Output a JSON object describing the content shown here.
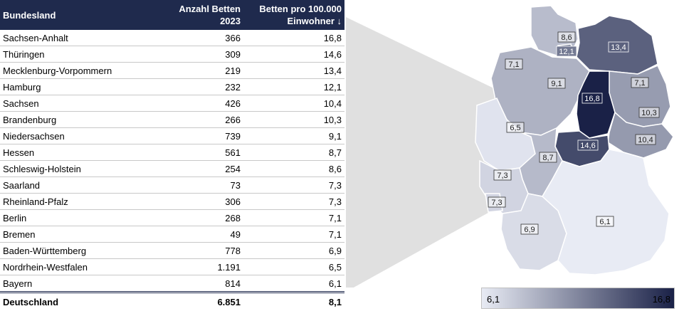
{
  "table": {
    "headers": [
      "Bundesland",
      "Anzahl Betten 2023",
      "Betten pro 100.000 Einwohner ↓"
    ],
    "header_lines": {
      "col2_line1": "Anzahl Betten",
      "col2_line2": "2023",
      "col3_line1": "Betten pro 100.000",
      "col3_line2": "Einwohner ↓"
    },
    "rows": [
      {
        "land": "Sachsen-Anhalt",
        "betten": "366",
        "rate": "16,8"
      },
      {
        "land": "Thüringen",
        "betten": "309",
        "rate": "14,6"
      },
      {
        "land": "Mecklenburg-Vorpommern",
        "betten": "219",
        "rate": "13,4"
      },
      {
        "land": "Hamburg",
        "betten": "232",
        "rate": "12,1"
      },
      {
        "land": "Sachsen",
        "betten": "426",
        "rate": "10,4"
      },
      {
        "land": "Brandenburg",
        "betten": "266",
        "rate": "10,3"
      },
      {
        "land": "Niedersachsen",
        "betten": "739",
        "rate": "9,1"
      },
      {
        "land": "Hessen",
        "betten": "561",
        "rate": "8,7"
      },
      {
        "land": "Schleswig-Holstein",
        "betten": "254",
        "rate": "8,6"
      },
      {
        "land": "Saarland",
        "betten": "73",
        "rate": "7,3"
      },
      {
        "land": "Rheinland-Pfalz",
        "betten": "306",
        "rate": "7,3"
      },
      {
        "land": "Berlin",
        "betten": "268",
        "rate": "7,1"
      },
      {
        "land": "Bremen",
        "betten": "49",
        "rate": "7,1"
      },
      {
        "land": "Baden-Württemberg",
        "betten": "778",
        "rate": "6,9"
      },
      {
        "land": "Nordrhein-Westfalen",
        "betten": "1.191",
        "rate": "6,5"
      },
      {
        "land": "Bayern",
        "betten": "814",
        "rate": "6,1"
      }
    ],
    "total": {
      "land": "Deutschland",
      "betten": "6.851",
      "rate": "8,1"
    }
  },
  "chart_data": {
    "type": "table",
    "columns": [
      "Bundesland",
      "Anzahl Betten 2023",
      "Betten pro 100.000 Einwohner"
    ],
    "categories": [
      "Sachsen-Anhalt",
      "Thüringen",
      "Mecklenburg-Vorpommern",
      "Hamburg",
      "Sachsen",
      "Brandenburg",
      "Niedersachsen",
      "Hessen",
      "Schleswig-Holstein",
      "Saarland",
      "Rheinland-Pfalz",
      "Berlin",
      "Bremen",
      "Baden-Württemberg",
      "Nordrhein-Westfalen",
      "Bayern"
    ],
    "series": [
      {
        "name": "Anzahl Betten 2023",
        "values": [
          366,
          309,
          219,
          232,
          426,
          266,
          739,
          561,
          254,
          73,
          306,
          268,
          49,
          778,
          1191,
          814
        ]
      },
      {
        "name": "Betten pro 100.000 Einwohner",
        "values": [
          16.8,
          14.6,
          13.4,
          12.1,
          10.4,
          10.3,
          9.1,
          8.7,
          8.6,
          7.3,
          7.3,
          7.1,
          7.1,
          6.9,
          6.5,
          6.1
        ]
      }
    ],
    "total": {
      "category": "Deutschland",
      "betten": 6851,
      "rate": 8.1
    },
    "map": {
      "type": "choropleth",
      "regions": [
        {
          "id": "SH",
          "label": "8,6",
          "value": 8.6
        },
        {
          "id": "HH",
          "label": "12,1",
          "value": 12.1
        },
        {
          "id": "MV",
          "label": "13,4",
          "value": 13.4
        },
        {
          "id": "HB",
          "label": "7,1",
          "value": 7.1
        },
        {
          "id": "NI",
          "label": "9,1",
          "value": 9.1
        },
        {
          "id": "BE",
          "label": "7,1",
          "value": 7.1
        },
        {
          "id": "BB",
          "label": "10,3",
          "value": 10.3
        },
        {
          "id": "ST",
          "label": "16,8",
          "value": 16.8
        },
        {
          "id": "SN",
          "label": "10,4",
          "value": 10.4
        },
        {
          "id": "TH",
          "label": "14,6",
          "value": 14.6
        },
        {
          "id": "NW",
          "label": "6,5",
          "value": 6.5
        },
        {
          "id": "HE",
          "label": "8,7",
          "value": 8.7
        },
        {
          "id": "RP",
          "label": "7,3",
          "value": 7.3
        },
        {
          "id": "SL",
          "label": "7,3",
          "value": 7.3
        },
        {
          "id": "BW",
          "label": "6,9",
          "value": 6.9
        },
        {
          "id": "BY",
          "label": "6,1",
          "value": 6.1
        }
      ],
      "scale": {
        "min": 6.1,
        "max": 16.8,
        "min_label": "6,1",
        "max_label": "16,8",
        "color_low": "#e8ebf4",
        "color_high": "#1a2147"
      }
    }
  }
}
